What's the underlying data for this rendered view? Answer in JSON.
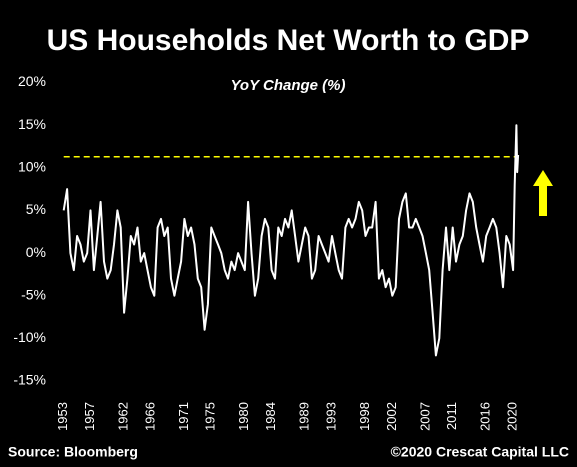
{
  "chart_data": {
    "type": "line",
    "title": "US Households Net Worth to GDP",
    "subtitle": "YoY Change (%)",
    "source": "Source: Bloomberg",
    "copyright": "©2020 Crescat Capital LLC",
    "x": [
      1953,
      1953.5,
      1954,
      1954.5,
      1955,
      1955.5,
      1956,
      1956.5,
      1957,
      1957.5,
      1958,
      1958.5,
      1959,
      1959.5,
      1960,
      1960.5,
      1961,
      1961.5,
      1962,
      1962.5,
      1963,
      1963.5,
      1964,
      1964.5,
      1965,
      1965.5,
      1966,
      1966.5,
      1967,
      1967.5,
      1968,
      1968.5,
      1969,
      1969.5,
      1970,
      1970.5,
      1971,
      1971.5,
      1972,
      1972.5,
      1973,
      1973.5,
      1974,
      1974.5,
      1975,
      1975.5,
      1976,
      1976.5,
      1977,
      1977.5,
      1978,
      1978.5,
      1979,
      1979.5,
      1980,
      1980.5,
      1981,
      1981.5,
      1982,
      1982.5,
      1983,
      1983.5,
      1984,
      1984.5,
      1985,
      1985.5,
      1986,
      1986.5,
      1987,
      1987.5,
      1988,
      1988.5,
      1989,
      1989.5,
      1990,
      1990.5,
      1991,
      1991.5,
      1992,
      1992.5,
      1993,
      1993.5,
      1994,
      1994.5,
      1995,
      1995.5,
      1996,
      1996.5,
      1997,
      1997.5,
      1998,
      1998.5,
      1999,
      1999.5,
      2000,
      2000.5,
      2001,
      2001.5,
      2002,
      2002.5,
      2003,
      2003.5,
      2004,
      2004.5,
      2005,
      2005.5,
      2006,
      2006.5,
      2007,
      2007.5,
      2008,
      2008.5,
      2009,
      2009.5,
      2010,
      2010.5,
      2011,
      2011.5,
      2012,
      2012.5,
      2013,
      2013.5,
      2014,
      2014.5,
      2015,
      2015.5,
      2016,
      2016.5,
      2017,
      2017.5,
      2018,
      2018.5,
      2019,
      2019.5,
      2020,
      2020.25,
      2020.5,
      2020.625,
      2020.75
    ],
    "values": [
      5,
      7.5,
      0,
      -2,
      2,
      1,
      -1,
      0,
      5,
      -2,
      2,
      6,
      -1,
      -3,
      -2,
      1,
      5,
      3,
      -7,
      -3,
      2,
      1,
      3,
      -1,
      0,
      -2,
      -4,
      -5,
      3,
      4,
      2,
      3,
      -3,
      -5,
      -3,
      -1,
      4,
      2,
      3,
      1,
      -3,
      -4,
      -9,
      -6,
      3,
      2,
      1,
      0,
      -2,
      -3,
      -1,
      -2,
      0,
      -1,
      -2,
      6,
      0,
      -5,
      -3,
      2,
      4,
      3,
      -2,
      -3,
      3,
      2,
      4,
      3,
      5,
      2,
      -1,
      1,
      3,
      2,
      -3,
      -2,
      2,
      1,
      0,
      -1,
      2,
      0,
      -2,
      -3,
      3,
      4,
      3,
      4,
      6,
      5,
      2,
      3,
      3,
      6,
      -3,
      -2,
      -4,
      -3,
      -5,
      -4,
      4,
      6,
      7,
      3,
      3,
      4,
      3,
      2,
      0,
      -2,
      -7,
      -12,
      -10,
      -2,
      3,
      -2,
      3,
      -1,
      1,
      2,
      5,
      7,
      6,
      3,
      1,
      -1,
      2,
      3,
      4,
      3,
      0,
      -4,
      2,
      1,
      -2,
      8,
      15,
      9.5,
      11.5
    ],
    "color": "#ffffff",
    "reference_line": 11.3,
    "reference_color": "#ffff00",
    "xlim": [
      1951.7,
      2027
    ],
    "xticks": [
      1953,
      1957,
      1962,
      1966,
      1971,
      1975,
      1980,
      1984,
      1989,
      1993,
      1998,
      2002,
      2007,
      2011,
      2016,
      2020
    ],
    "ylim": [
      -17,
      21
    ],
    "yticks": [
      {
        "value": 20,
        "label": "20%"
      },
      {
        "value": 15,
        "label": "15%"
      },
      {
        "value": 10,
        "label": "10%"
      },
      {
        "value": 5,
        "label": "5%"
      },
      {
        "value": 0,
        "label": "0%"
      },
      {
        "value": -5,
        "label": "-5%"
      },
      {
        "value": -10,
        "label": "-10%"
      },
      {
        "value": -15,
        "label": "-15%"
      }
    ]
  }
}
